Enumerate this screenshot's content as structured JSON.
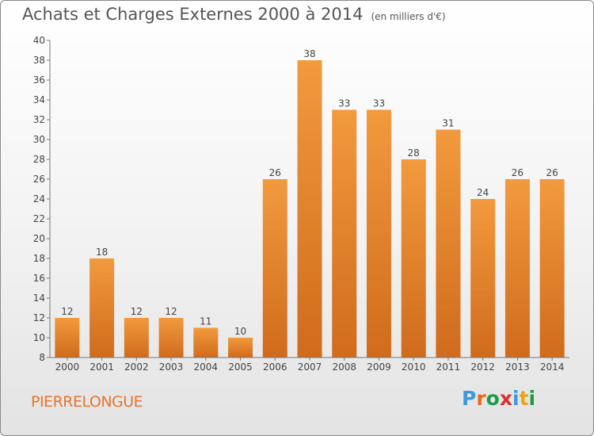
{
  "title": "Achats et Charges Externes 2000 à 2014",
  "subtitle": "(en milliers d'€)",
  "location": "PIERRELONGUE",
  "logo_text": "Proxiti",
  "logo_colors": [
    "#3a9ad9",
    "#e86a1a",
    "#1c9c4a",
    "#d93030",
    "#3a9ad9",
    "#e8a51a",
    "#1c9c4a"
  ],
  "chart_data": {
    "type": "bar",
    "categories": [
      "2000",
      "2001",
      "2002",
      "2003",
      "2004",
      "2005",
      "2006",
      "2007",
      "2008",
      "2009",
      "2010",
      "2011",
      "2012",
      "2013",
      "2014"
    ],
    "values": [
      12,
      18,
      12,
      12,
      11,
      10,
      26,
      38,
      33,
      33,
      28,
      31,
      24,
      26,
      26
    ],
    "ylim": [
      8,
      40
    ],
    "yticks": [
      8,
      10,
      12,
      14,
      16,
      18,
      20,
      22,
      24,
      26,
      28,
      30,
      32,
      34,
      36,
      38,
      40
    ],
    "grid": false,
    "bar_color": "#f29a3e",
    "bar_color_dark": "#d06b1c"
  }
}
